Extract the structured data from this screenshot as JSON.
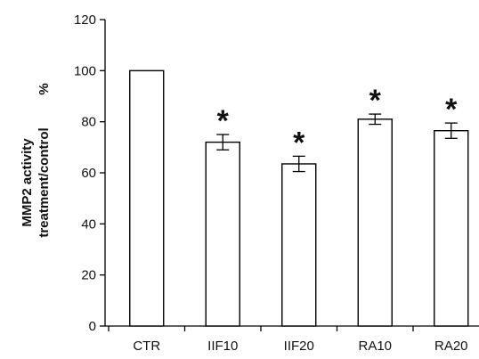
{
  "chart_data": {
    "type": "bar",
    "categories": [
      "CTR",
      "IIF10",
      "IIF20",
      "RA10",
      "RA20"
    ],
    "values": [
      100,
      72,
      63.5,
      81,
      76.5
    ],
    "errors": [
      0,
      3,
      3,
      2,
      3
    ],
    "significance": [
      "",
      "*",
      "*",
      "*",
      "*"
    ],
    "ylabel_lines": [
      "MMP2 activity",
      "treatment/control"
    ],
    "ylabel_unit": "%",
    "ylim": [
      0,
      120
    ],
    "yticks": [
      0,
      20,
      40,
      60,
      80,
      100,
      120
    ],
    "grid": false,
    "legend": "none"
  }
}
